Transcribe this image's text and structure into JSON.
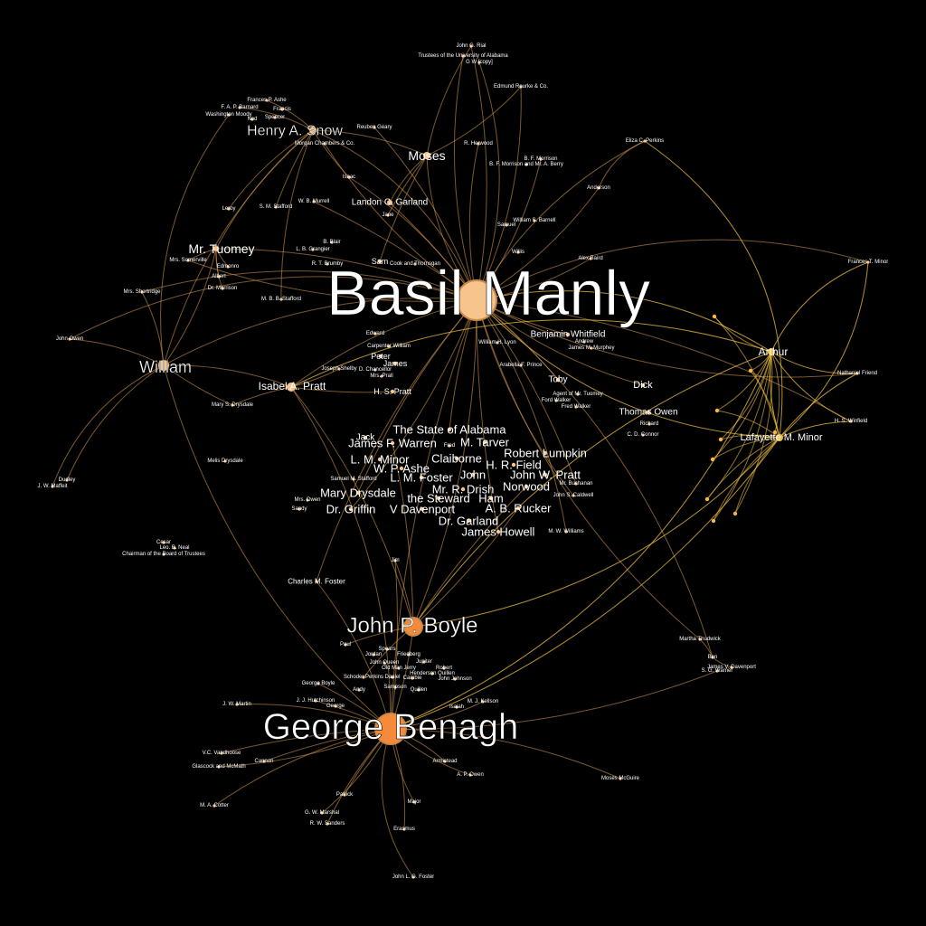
{
  "colors": {
    "background": "#000000",
    "edge": "#e0a050",
    "edge_gold": "#f0c040",
    "node_peach": "#f6c48c",
    "node_orange": "#f58a3a",
    "node_gold": "#f2b84a",
    "label": "#ffffff"
  },
  "nodes": [
    {
      "id": "basil",
      "label": "Basil Manly",
      "tier": 1,
      "color": "peach"
    },
    {
      "id": "benagh",
      "label": "George Benagh",
      "tier": 1,
      "color": "orange"
    },
    {
      "id": "boyle",
      "label": "John P. Boyle",
      "tier": 2,
      "color": "orange"
    },
    {
      "id": "snow",
      "label": "Henry A. Snow",
      "tier": 3,
      "color": "peach"
    },
    {
      "id": "william",
      "label": "William",
      "tier": 3,
      "color": "peach"
    },
    {
      "id": "tuomey",
      "label": "Mr. Tuomey",
      "tier": 4,
      "color": "peach"
    },
    {
      "id": "moses",
      "label": "Moses",
      "tier": 4,
      "color": "peach"
    },
    {
      "id": "isabel",
      "label": "Isabel A. Pratt",
      "tier": 4,
      "color": "peach"
    },
    {
      "id": "arthur",
      "label": "Arthur",
      "tier": 4,
      "color": "gold"
    },
    {
      "id": "lafayette",
      "label": "Lafayette M. Minor",
      "tier": 4,
      "color": "gold"
    },
    {
      "id": "landon",
      "label": "Landon C. Garland",
      "tier": 5,
      "color": "peach"
    },
    {
      "id": "stateal",
      "label": "The State of Alabama",
      "tier": 5
    },
    {
      "id": "warren",
      "label": "James F. Warren",
      "tier": 5
    },
    {
      "id": "tarver",
      "label": "M. Tarver",
      "tier": 5
    },
    {
      "id": "lumpkin",
      "label": "Robert Lumpkin",
      "tier": 5
    },
    {
      "id": "lminor",
      "label": "L. M. Minor",
      "tier": 5
    },
    {
      "id": "claiborne",
      "label": "Claiborne",
      "tier": 5
    },
    {
      "id": "field",
      "label": "H. R. Field",
      "tier": 5
    },
    {
      "id": "ashe",
      "label": "W. P. Ashe",
      "tier": 5
    },
    {
      "id": "lmfoster",
      "label": "L. M. Foster",
      "tier": 5
    },
    {
      "id": "john",
      "label": "John",
      "tier": 5
    },
    {
      "id": "jwpratt",
      "label": "John W. Pratt",
      "tier": 5
    },
    {
      "id": "drish",
      "label": "Mr. R. Drish",
      "tier": 5
    },
    {
      "id": "norwood",
      "label": "Norwood",
      "tier": 5
    },
    {
      "id": "mdrysdale",
      "label": "Mary Drysdale",
      "tier": 5
    },
    {
      "id": "steward",
      "label": "the Steward",
      "tier": 5
    },
    {
      "id": "ham",
      "label": "Ham",
      "tier": 5
    },
    {
      "id": "griffin",
      "label": "Dr. Griffin",
      "tier": 5
    },
    {
      "id": "vdavenport",
      "label": "V Davenport",
      "tier": 5
    },
    {
      "id": "rucker",
      "label": "A. B. Rucker",
      "tier": 5
    },
    {
      "id": "garland",
      "label": "Dr. Garland",
      "tier": 5
    },
    {
      "id": "jhowell",
      "label": "James Howell",
      "tier": 5
    },
    {
      "id": "whitfield",
      "label": "Benjamin Whitfield",
      "tier": 5
    },
    {
      "id": "dick",
      "label": "Dick",
      "tier": 5
    },
    {
      "id": "towen",
      "label": "Thomas Owen",
      "tier": 5
    },
    {
      "id": "toby",
      "label": "Toby",
      "tier": 5
    },
    {
      "id": "jack",
      "label": "Jack",
      "tier": 5
    },
    {
      "id": "peter",
      "label": "Peter",
      "tier": 5
    },
    {
      "id": "james",
      "label": "James",
      "tier": 5
    },
    {
      "id": "hspratt",
      "label": "H. S. Pratt",
      "tier": 5
    },
    {
      "id": "sam",
      "label": "Sam",
      "tier": 5
    },
    {
      "id": "rial",
      "label": "John G. Rial",
      "tier": 6
    },
    {
      "id": "trustees",
      "label": "Trustees of the University of Alabama",
      "tier": 6
    },
    {
      "id": "gw",
      "label": "G W [copy]",
      "tier": 6
    },
    {
      "id": "rourke",
      "label": "Edmund Rourke & Co.",
      "tier": 6
    },
    {
      "id": "fpashe",
      "label": "Frances P. Ashe",
      "tier": 6
    },
    {
      "id": "barnard",
      "label": "F. A. P. Barnard",
      "tier": 6
    },
    {
      "id": "francis",
      "label": "Francis",
      "tier": 6
    },
    {
      "id": "wmoody",
      "label": "Washington Moody",
      "tier": 6
    },
    {
      "id": "ned",
      "label": "Ned",
      "tier": 6
    },
    {
      "id": "spencer",
      "label": "Spencer",
      "tier": 6
    },
    {
      "id": "rgeary",
      "label": "Reuben Geary",
      "tier": 6
    },
    {
      "id": "morgan",
      "label": "Morgan Chambers & Co.",
      "tier": 6
    },
    {
      "id": "rherwood",
      "label": "R. Herwood",
      "tier": 6
    },
    {
      "id": "bfmorrison",
      "label": "B. F. Morrison",
      "tier": 6
    },
    {
      "id": "bfmandberry",
      "label": "B. F. Morrison and Mr. A. Berry",
      "tier": 6
    },
    {
      "id": "eliza",
      "label": "Eliza C. Perkins",
      "tier": 6
    },
    {
      "id": "isaac",
      "label": "Isaac",
      "tier": 6
    },
    {
      "id": "anderson",
      "label": "Anderson",
      "tier": 6
    },
    {
      "id": "leroy",
      "label": "Leroy",
      "tier": 6
    },
    {
      "id": "smstafford",
      "label": "S. M. Stafford",
      "tier": 6
    },
    {
      "id": "wbmurrell",
      "label": "W. B. Murrell",
      "tier": 6
    },
    {
      "id": "jane",
      "label": "Jane",
      "tier": 6
    },
    {
      "id": "samuel",
      "label": "Samuel",
      "tier": 6
    },
    {
      "id": "wbarnell",
      "label": "William S. Barnell",
      "tier": 6
    },
    {
      "id": "bblair",
      "label": "B. Blair",
      "tier": 6
    },
    {
      "id": "lbgrangier",
      "label": "L. B. Grangier",
      "tier": 6
    },
    {
      "id": "willis",
      "label": "Willis",
      "tier": 6
    },
    {
      "id": "abaird",
      "label": "Alex Baird",
      "tier": 6
    },
    {
      "id": "somerville",
      "label": "Mrs. Somerville",
      "tier": 6
    },
    {
      "id": "edmonro",
      "label": "Edmonro",
      "tier": 6
    },
    {
      "id": "rtbrumby",
      "label": "R. T. Brumby",
      "tier": 6
    },
    {
      "id": "cookthornsgan",
      "label": "Cook and Thornsgan",
      "tier": 6
    },
    {
      "id": "ftminor",
      "label": "Frances T. Minor",
      "tier": 6
    },
    {
      "id": "albert",
      "label": "Albert",
      "tier": 6
    },
    {
      "id": "drmorrison",
      "label": "Dr. Morrison",
      "tier": 6
    },
    {
      "id": "mbbstafford",
      "label": "M. B. B. Stafford",
      "tier": 6
    },
    {
      "id": "shortridge",
      "label": "Mrs. Shortridge",
      "tier": 6
    },
    {
      "id": "jowen",
      "label": "John Owen",
      "tier": 6
    },
    {
      "id": "edward",
      "label": "Edward",
      "tier": 6
    },
    {
      "id": "cwilliam",
      "label": "Carpenter William",
      "tier": 6
    },
    {
      "id": "wmlyon",
      "label": "William H. Lyon",
      "tier": 6
    },
    {
      "id": "andrew",
      "label": "Andrew",
      "tier": 6
    },
    {
      "id": "jmmurphey",
      "label": "James M. Murphey",
      "tier": 6
    },
    {
      "id": "arabella",
      "label": "Arabella F. Prince",
      "tier": 6
    },
    {
      "id": "nfriend",
      "label": "Nathaniel Friend",
      "tier": 6
    },
    {
      "id": "jshelby",
      "label": "Joseph Shelby",
      "tier": 6
    },
    {
      "id": "dchancellor",
      "label": "D. Chancellor",
      "tier": 6
    },
    {
      "id": "mrsprall",
      "label": "Mrs. Prall",
      "tier": 6
    },
    {
      "id": "agent",
      "label": "Agent of Mr. Tuomey",
      "tier": 6
    },
    {
      "id": "fordwalker",
      "label": "Ford Walker",
      "tier": 6
    },
    {
      "id": "fredwalker",
      "label": "Fred Walker",
      "tier": 6
    },
    {
      "id": "msdrysdale",
      "label": "Mary S. Drysdale",
      "tier": 6
    },
    {
      "id": "hswinfield",
      "label": "H. S. Winfield",
      "tier": 6
    },
    {
      "id": "richard",
      "label": "Richard",
      "tier": 6
    },
    {
      "id": "cdconnor",
      "label": "C. D. Connor",
      "tier": 6
    },
    {
      "id": "fred",
      "label": "Fred",
      "tier": 6
    },
    {
      "id": "melissdrysdale",
      "label": "Melis Drysdale",
      "tier": 6
    },
    {
      "id": "dudley",
      "label": "Dudley",
      "tier": 6
    },
    {
      "id": "jwmaffeit",
      "label": "J. W. Maffeit",
      "tier": 6
    },
    {
      "id": "smstafford2",
      "label": "Samuel M. Stafford",
      "tier": 6
    },
    {
      "id": "mbuchanan",
      "label": "Mr. Buchanan",
      "tier": 6
    },
    {
      "id": "jscaldwell",
      "label": "John S. Caldwell",
      "tier": 6
    },
    {
      "id": "mrsowen",
      "label": "Mrs. Owen",
      "tier": 6
    },
    {
      "id": "sandy",
      "label": "Sandy",
      "tier": 6
    },
    {
      "id": "mwwilliams",
      "label": "M. W. Williams",
      "tier": 6
    },
    {
      "id": "cesar",
      "label": "Cesar",
      "tier": 6
    },
    {
      "id": "leobneal",
      "label": "Leo. B. Neal",
      "tier": 6
    },
    {
      "id": "chairman",
      "label": "Chairman of the Board of Trustees",
      "tier": 6
    },
    {
      "id": "cmfoster",
      "label": "Charles M. Foster",
      "tier": 6
    },
    {
      "id": "jim",
      "label": "Jim",
      "tier": 6
    },
    {
      "id": "paul",
      "label": "Paul",
      "tier": 6
    },
    {
      "id": "jordan",
      "label": "Jordan",
      "tier": 6
    },
    {
      "id": "spears",
      "label": "Spears",
      "tier": 6
    },
    {
      "id": "friedberg",
      "label": "Friedberg",
      "tier": 6
    },
    {
      "id": "johnqueen",
      "label": "John Queen",
      "tier": 6
    },
    {
      "id": "jupiter",
      "label": "Jupiter",
      "tier": 6
    },
    {
      "id": "oldmanjerry",
      "label": "Old Man Jerry",
      "tier": 6
    },
    {
      "id": "robert",
      "label": "Robert",
      "tier": 6
    },
    {
      "id": "schoder",
      "label": "Schoder Perkins",
      "tier": 6
    },
    {
      "id": "daniel",
      "label": "Daniel",
      "tier": 6
    },
    {
      "id": "henderson",
      "label": "Henderson Quillen",
      "tier": 6
    },
    {
      "id": "cambie",
      "label": "Cambie",
      "tier": 6
    },
    {
      "id": "jjohnson",
      "label": "John Johnson",
      "tier": 6
    },
    {
      "id": "gboyle",
      "label": "George Boyle",
      "tier": 6
    },
    {
      "id": "andy",
      "label": "Andy",
      "tier": 6
    },
    {
      "id": "sampson",
      "label": "Sampson",
      "tier": 6
    },
    {
      "id": "quillen",
      "label": "Quillen",
      "tier": 6
    },
    {
      "id": "jjhutchinson",
      "label": "J. J. Hutchinson",
      "tier": 6
    },
    {
      "id": "george",
      "label": "George",
      "tier": 6
    },
    {
      "id": "mjkellson",
      "label": "M. J. Kellson",
      "tier": 6
    },
    {
      "id": "isaiah",
      "label": "Isaiah",
      "tier": 6
    },
    {
      "id": "jwmartin",
      "label": "J. W. Martin",
      "tier": 6
    },
    {
      "id": "vcvandhoose",
      "label": "V.C. Vandhoose",
      "tier": 6
    },
    {
      "id": "glascock",
      "label": "Glascock and McMath",
      "tier": 6
    },
    {
      "id": "cannon",
      "label": "Cannon",
      "tier": 6
    },
    {
      "id": "armistead",
      "label": "Armistead",
      "tier": 6
    },
    {
      "id": "apowen",
      "label": "A. P. Owen",
      "tier": 6
    },
    {
      "id": "mosesmcguire",
      "label": "Moses McGuire",
      "tier": 6
    },
    {
      "id": "patrick",
      "label": "Patrick",
      "tier": 6
    },
    {
      "id": "major",
      "label": "Major",
      "tier": 6
    },
    {
      "id": "macotter",
      "label": "M. A. Cotter",
      "tier": 6
    },
    {
      "id": "gwmarshal",
      "label": "G. W. Marshal",
      "tier": 6
    },
    {
      "id": "rwsanders",
      "label": "R. W. Sanders",
      "tier": 6
    },
    {
      "id": "erasmus",
      "label": "Erasmus",
      "tier": 6
    },
    {
      "id": "jlgfoster",
      "label": "John L. G. Foster",
      "tier": 6
    },
    {
      "id": "thudwick",
      "label": "Martha Thudwick",
      "tier": 6
    },
    {
      "id": "ben",
      "label": "Ben",
      "tier": 6
    },
    {
      "id": "jvdavenport",
      "label": "James V. Davenport",
      "tier": 6
    },
    {
      "id": "sgwarner",
      "label": "S. G. Warner",
      "tier": 6
    }
  ]
}
